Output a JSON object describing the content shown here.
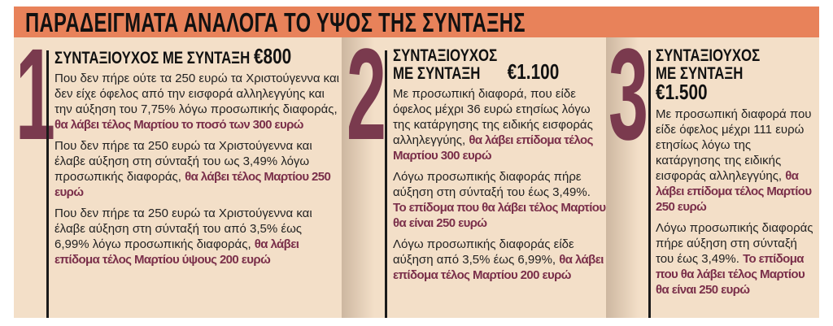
{
  "title": "ΠΑΡΑΔΕΙΓΜΑΤΑ ΑΝΑΛΟΓΑ ΤΟ ΥΨΟΣ ΤΗΣ ΣΥΝΤΑΞΗΣ",
  "colors": {
    "banner": "#e8825a",
    "background": "#f3dfc8",
    "number": "#7a3a4e",
    "highlight": "#7a2f4a"
  },
  "columns": [
    {
      "number": "1",
      "heading_prefix": "ΣΥΝΤΑΞΙΟΥΧΟΣ ΜΕ ΣΥΝΤΑΞΗ",
      "heading_amount": "€800",
      "paragraphs": [
        {
          "text": "Που δεν πήρε ούτε τα 250 ευρώ τα Χριστούγεννα και δεν είχε όφελος από την εισφορά αλληλεγγύης και την αύξηση του 7,75% λόγω προσωπικής διαφοράς, ",
          "highlight": "θα λάβει τέλος Μαρτίου το ποσό των 300 ευρώ"
        },
        {
          "text": "Που δεν πήρε τα 250 ευρώ τα Χριστούγεννα και έλαβε αύξηση στη σύνταξή του ως 3,49% λόγω προσωπικής διαφοράς, ",
          "highlight": "θα λάβει τέλος Μαρτίου 250 ευρώ"
        },
        {
          "text": "Που δεν πήρε τα 250 ευρώ τα Χριστούγεννα και έλαβε αύξηση στη σύνταξή του από 3,5% έως 6,99% λόγω προσωπικής διαφοράς, ",
          "highlight": "θα λάβει επίδομα τέλος Μαρτίου ύψους 200 ευρώ"
        }
      ]
    },
    {
      "number": "2",
      "heading_prefix": "ΣΥΝΤΑΞΙΟΥΧΟΣ ΜΕ ΣΥΝΤΑΞΗ",
      "heading_amount": "€1.100",
      "paragraphs": [
        {
          "text": "Με προσωπική διαφορά, που είδε όφελος μέχρι 36 ευρώ ετησίως λόγω της κατάργησης της ειδικής εισφοράς αλληλεγγύης, ",
          "highlight": "θα λάβει επίδομα τέλος Μαρτίου 300 ευρώ"
        },
        {
          "text": "Λόγω προσωπικής διαφοράς πήρε αύξηση στη σύνταξή του έως 3,49%. ",
          "highlight": "Το επίδομα που θα λάβει τέλος Μαρτίου θα είναι 250 ευρώ"
        },
        {
          "text": " Λόγω προσωπικής διαφοράς είδε αύξηση από 3,5% έως 6,99%, ",
          "highlight": "θα λάβει επίδομα τέλος Μαρτίου 200 ευρώ"
        }
      ]
    },
    {
      "number": "3",
      "heading_prefix": "ΣΥΝΤΑΞΙΟΥΧΟΣ ΜΕ ΣΥΝΤΑΞΗ",
      "heading_amount": "€1.500",
      "paragraphs": [
        {
          "text": "Με προσωπική διαφορά που είδε όφελος μέχρι 111 ευρώ ετησίως λόγω της κατάργησης της ειδικής εισφοράς αλληλεγγύης, ",
          "highlight": "θα λάβει επίδομα τέλος Μαρτίου 250 ευρώ"
        },
        {
          "text": "Λόγω προσωπικής διαφοράς πήρε αύξηση στη σύνταξή του έως 3,49%. ",
          "highlight": "Το επίδομα που θα λάβει τέλος Μαρτίου θα είναι 250 ευρώ"
        }
      ]
    }
  ]
}
